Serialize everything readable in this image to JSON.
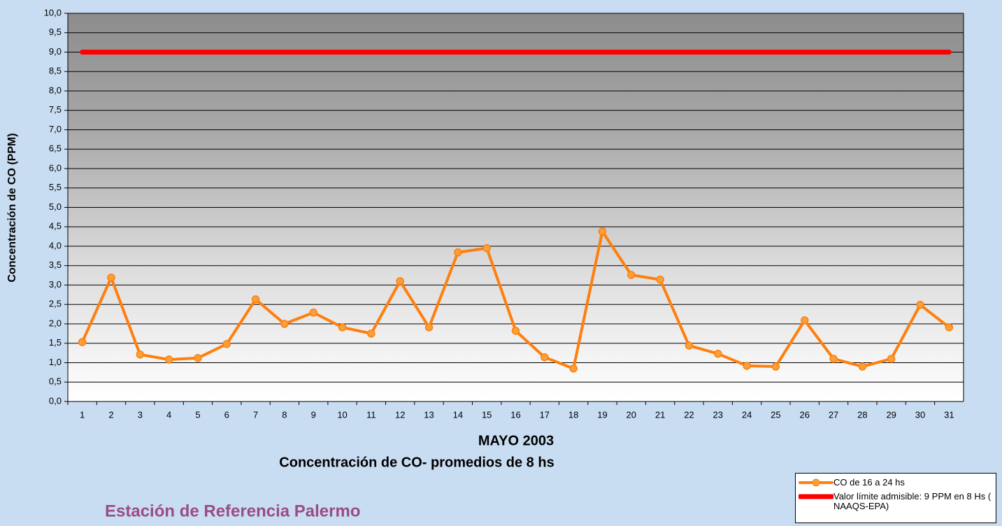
{
  "chart_data": {
    "type": "line",
    "title": "MAYO 2003",
    "subtitle": "Concentración de CO- promedios de 8 hs",
    "y_label": "Concentración de CO (PPM)",
    "annotation": "Estación de Referencia Palermo",
    "categories": [
      "1",
      "2",
      "3",
      "4",
      "5",
      "6",
      "7",
      "8",
      "9",
      "10",
      "11",
      "12",
      "13",
      "14",
      "15",
      "16",
      "17",
      "18",
      "19",
      "20",
      "21",
      "22",
      "23",
      "24",
      "25",
      "26",
      "27",
      "28",
      "29",
      "30",
      "31"
    ],
    "series": [
      {
        "name": "CO de 16 a 24 hs",
        "color": "#ff7f0e",
        "markers": true,
        "values": [
          1.53,
          3.19,
          1.21,
          1.08,
          1.12,
          1.48,
          2.63,
          2.0,
          2.29,
          1.91,
          1.75,
          3.1,
          1.91,
          3.84,
          3.95,
          1.82,
          1.14,
          0.85,
          4.38,
          3.26,
          3.14,
          1.44,
          1.23,
          0.92,
          0.9,
          2.09,
          1.1,
          0.9,
          1.1,
          2.49,
          1.91
        ]
      },
      {
        "name": "Valor límite admisible: 9 PPM en 8 Hs ( NAAQS-EPA)",
        "color": "#ff0000",
        "markers": false,
        "values": [
          9,
          9,
          9,
          9,
          9,
          9,
          9,
          9,
          9,
          9,
          9,
          9,
          9,
          9,
          9,
          9,
          9,
          9,
          9,
          9,
          9,
          9,
          9,
          9,
          9,
          9,
          9,
          9,
          9,
          9,
          9
        ]
      }
    ],
    "ylim": [
      0,
      10
    ],
    "yticks": [
      {
        "value": 0,
        "label": "0,0"
      },
      {
        "value": 0.5,
        "label": "0,5"
      },
      {
        "value": 1,
        "label": "1,0"
      },
      {
        "value": 1.5,
        "label": "1,5"
      },
      {
        "value": 2,
        "label": "2,0"
      },
      {
        "value": 2.5,
        "label": "2,5"
      },
      {
        "value": 3,
        "label": "3,0"
      },
      {
        "value": 3.5,
        "label": "3,5"
      },
      {
        "value": 4,
        "label": "4,0"
      },
      {
        "value": 4.5,
        "label": "4,5"
      },
      {
        "value": 5,
        "label": "5,0"
      },
      {
        "value": 5.5,
        "label": "5,5"
      },
      {
        "value": 6,
        "label": "6,0"
      },
      {
        "value": 6.5,
        "label": "6,5"
      },
      {
        "value": 7,
        "label": "7,0"
      },
      {
        "value": 7.5,
        "label": "7,5"
      },
      {
        "value": 8,
        "label": "8,0"
      },
      {
        "value": 8.5,
        "label": "8,5"
      },
      {
        "value": 9,
        "label": "9,0"
      },
      {
        "value": 9.5,
        "label": "9,5"
      },
      {
        "value": 10,
        "label": "10,0"
      }
    ],
    "grid": true,
    "legend": "bottom-right"
  }
}
